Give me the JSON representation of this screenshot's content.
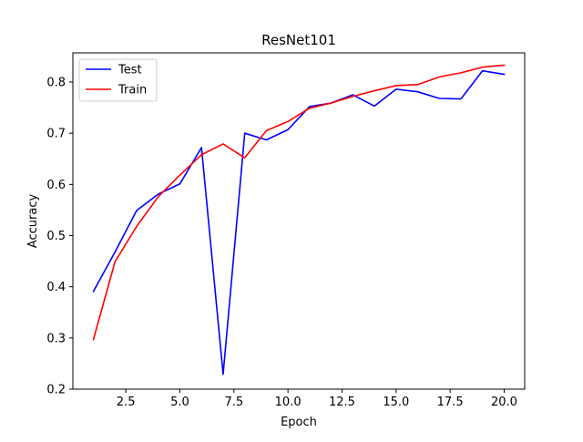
{
  "chart_data": {
    "type": "line",
    "title": "ResNet101",
    "xlabel": "Epoch",
    "ylabel": "Accuracy",
    "xlim": [
      0.05,
      20.95
    ],
    "ylim": [
      0.2,
      0.857
    ],
    "xticks": [
      2.5,
      5.0,
      7.5,
      10.0,
      12.5,
      15.0,
      17.5,
      20.0
    ],
    "xtick_labels": [
      "2.5",
      "5.0",
      "7.5",
      "10.0",
      "12.5",
      "15.0",
      "17.5",
      "20.0"
    ],
    "yticks": [
      0.2,
      0.3,
      0.4,
      0.5,
      0.6,
      0.7,
      0.8
    ],
    "ytick_labels": [
      "0.2",
      "0.3",
      "0.4",
      "0.5",
      "0.6",
      "0.7",
      "0.8"
    ],
    "x": [
      1,
      2,
      3,
      4,
      5,
      6,
      7,
      8,
      9,
      10,
      11,
      12,
      13,
      14,
      15,
      16,
      17,
      18,
      19,
      20
    ],
    "series": [
      {
        "name": "Test",
        "color": "#0000ff",
        "values": [
          0.391,
          0.468,
          0.549,
          0.581,
          0.601,
          0.672,
          0.229,
          0.7,
          0.687,
          0.707,
          0.752,
          0.759,
          0.775,
          0.753,
          0.786,
          0.781,
          0.768,
          0.767,
          0.822,
          0.815
        ]
      },
      {
        "name": "Train",
        "color": "#ff0000",
        "values": [
          0.297,
          0.449,
          0.518,
          0.576,
          0.618,
          0.658,
          0.679,
          0.652,
          0.705,
          0.723,
          0.749,
          0.759,
          0.772,
          0.783,
          0.793,
          0.795,
          0.81,
          0.818,
          0.829,
          0.833
        ]
      }
    ],
    "legend": {
      "position": "top-left",
      "entries": [
        "Test",
        "Train"
      ]
    },
    "grid": false
  }
}
